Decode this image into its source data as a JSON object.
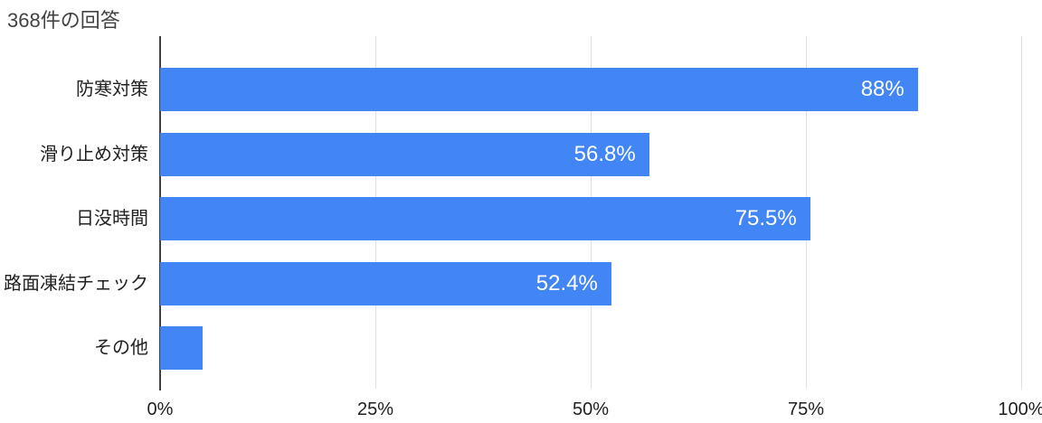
{
  "chart_data": {
    "type": "bar",
    "orientation": "horizontal",
    "title": "368件の回答",
    "categories": [
      "防寒対策",
      "滑り止め対策",
      "日没時間",
      "路面凍結チェック",
      "その他"
    ],
    "values": [
      88,
      56.8,
      75.5,
      52.4,
      4.9
    ],
    "value_labels": [
      "88%",
      "56.8%",
      "75.5%",
      "52.4%",
      ""
    ],
    "x_ticks": [
      {
        "label": "0%",
        "value": 0
      },
      {
        "label": "25%",
        "value": 25
      },
      {
        "label": "50%",
        "value": 50
      },
      {
        "label": "75%",
        "value": 75
      },
      {
        "label": "100%",
        "value": 100
      }
    ],
    "xlim": [
      0,
      100
    ],
    "grid": true,
    "legend": "none",
    "colors": {
      "bar": "#4285f4",
      "gridline": "#e0e0e0",
      "axis_line": "#424242",
      "title_text": "#424242",
      "category_text": "#212121",
      "tick_text": "#1f1f1f",
      "value_text": "#ffffff"
    }
  }
}
